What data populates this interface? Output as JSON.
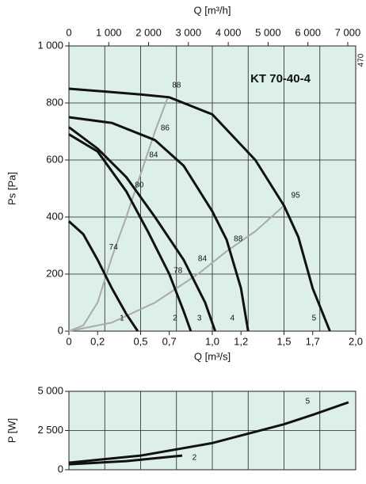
{
  "chart_data": [
    {
      "type": "line",
      "title": "KT 70-40-4",
      "side_note": "470",
      "xlabel": "Q [m³/s]",
      "ylabel": "Ps [Pa]",
      "x2label": "Q [m³/h]",
      "xlim": [
        0,
        2.0
      ],
      "ylim": [
        0,
        1000
      ],
      "x2lim": [
        0,
        7200
      ],
      "xticks": [
        0,
        {
          "value": 0.2,
          "label": "0,2"
        },
        {
          "value": 0.5,
          "label": "0,5"
        },
        {
          "value": 0.7,
          "label": "0,7"
        },
        {
          "value": 1.0,
          "label": "1,0"
        },
        {
          "value": 1.2,
          "label": "1,2"
        },
        {
          "value": 1.5,
          "label": "1,5"
        },
        {
          "value": 1.7,
          "label": "1,7"
        },
        {
          "value": 2.0,
          "label": "2,0"
        }
      ],
      "yticks": [
        0,
        200,
        400,
        600,
        800,
        {
          "value": 1000,
          "label": "1 000"
        }
      ],
      "x2ticks": [
        0,
        {
          "value": 1000,
          "label": "1 000"
        },
        {
          "value": 2000,
          "label": "2 000"
        },
        {
          "value": 3000,
          "label": "3 000"
        },
        {
          "value": 4000,
          "label": "4 000"
        },
        {
          "value": 5000,
          "label": "5 000"
        },
        {
          "value": 6000,
          "label": "6 000"
        },
        {
          "value": 7000,
          "label": "7 000"
        }
      ],
      "x_gridlines": [
        0.25,
        0.5,
        0.75,
        1.0,
        1.25,
        1.5,
        1.75
      ],
      "grid": true,
      "background": "#dcefe9",
      "series": [
        {
          "name": "1",
          "color": "#111111",
          "x": [
            0,
            0.1,
            0.2,
            0.3,
            0.4,
            0.48
          ],
          "values": [
            385,
            340,
            250,
            150,
            60,
            0
          ]
        },
        {
          "name": "2",
          "color": "#111111",
          "x": [
            0,
            0.2,
            0.4,
            0.55,
            0.7,
            0.8,
            0.85
          ],
          "values": [
            690,
            630,
            490,
            350,
            200,
            70,
            0
          ]
        },
        {
          "name": "3",
          "color": "#111111",
          "x": [
            0,
            0.2,
            0.4,
            0.6,
            0.8,
            0.95,
            1.02
          ],
          "values": [
            715,
            640,
            540,
            400,
            250,
            100,
            0
          ]
        },
        {
          "name": "4",
          "color": "#111111",
          "x": [
            0,
            0.3,
            0.6,
            0.8,
            1.0,
            1.1,
            1.2,
            1.25
          ],
          "values": [
            750,
            730,
            670,
            580,
            420,
            320,
            150,
            0
          ]
        },
        {
          "name": "5",
          "color": "#111111",
          "x": [
            0,
            0.5,
            0.7,
            1.0,
            1.3,
            1.5,
            1.6,
            1.7,
            1.82
          ],
          "values": [
            850,
            830,
            820,
            760,
            600,
            440,
            330,
            150,
            0
          ]
        }
      ],
      "system_curves": [
        {
          "color": "#aaaaaa",
          "x": [
            0,
            0.1,
            0.2,
            0.3,
            0.4,
            0.5,
            0.6,
            0.69
          ],
          "values": [
            0,
            20,
            100,
            260,
            400,
            550,
            700,
            820
          ]
        },
        {
          "color": "#aaaaaa",
          "x": [
            0,
            0.3,
            0.6,
            0.9,
            1.1,
            1.3,
            1.5
          ],
          "values": [
            0,
            30,
            100,
            200,
            280,
            350,
            440
          ]
        }
      ],
      "annotations": [
        {
          "text": "74",
          "x": 0.28,
          "y": 294
        },
        {
          "text": "80",
          "x": 0.46,
          "y": 511
        },
        {
          "text": "84",
          "x": 0.56,
          "y": 617
        },
        {
          "text": "86",
          "x": 0.64,
          "y": 711
        },
        {
          "text": "88",
          "x": 0.72,
          "y": 861
        },
        {
          "text": "78",
          "x": 0.73,
          "y": 211
        },
        {
          "text": "84",
          "x": 0.9,
          "y": 253
        },
        {
          "text": "88",
          "x": 1.15,
          "y": 322
        },
        {
          "text": "95",
          "x": 1.55,
          "y": 475
        }
      ]
    },
    {
      "type": "line",
      "ylabel": "P [W]",
      "xlim": [
        0,
        2.0
      ],
      "ylim": [
        0,
        5000
      ],
      "yticks": [
        0,
        {
          "value": 2500,
          "label": "2 500"
        },
        {
          "value": 5000,
          "label": "5 000"
        }
      ],
      "x_gridlines": [
        0.25,
        0.5,
        0.75,
        1.0,
        1.25,
        1.5,
        1.75
      ],
      "grid": true,
      "background": "#dcefe9",
      "series": [
        {
          "name": "2",
          "color": "#111111",
          "x": [
            0,
            0.4,
            0.79
          ],
          "values": [
            350,
            550,
            900
          ]
        },
        {
          "name": "5",
          "color": "#111111",
          "x": [
            0,
            0.5,
            1.0,
            1.25,
            1.5,
            1.7,
            1.95
          ],
          "values": [
            450,
            900,
            1700,
            2300,
            2900,
            3500,
            4300
          ]
        }
      ],
      "annotations": [
        {
          "text": "2",
          "x": 0.86,
          "y": 760
        },
        {
          "text": "5",
          "x": 1.65,
          "y": 4340
        }
      ]
    }
  ]
}
